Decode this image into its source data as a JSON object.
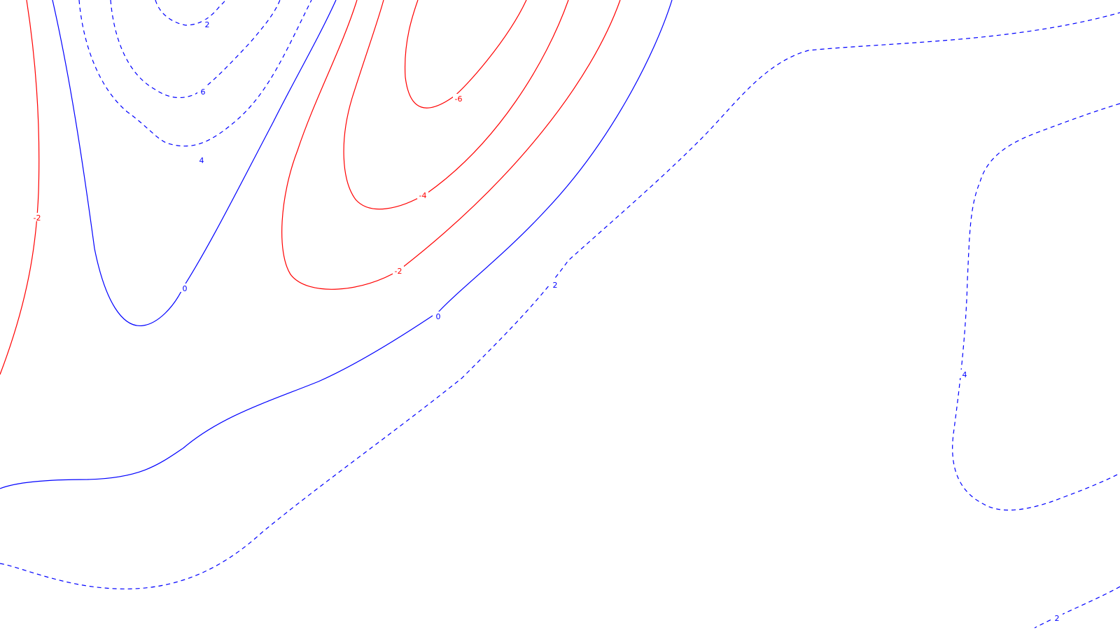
{
  "colors": {
    "negative": "#ff0000",
    "positive": "#0000ff",
    "background": "#ffffff"
  },
  "chart_data": {
    "type": "contour",
    "title": "",
    "xlabel": "",
    "ylabel": "",
    "grid": false,
    "legend": "none",
    "line_styles": {
      "positive": "dashed",
      "negative": "solid"
    },
    "contour_levels": [
      -6,
      -4,
      -2,
      0,
      2,
      4,
      6
    ],
    "contours": [
      {
        "level": -6,
        "style": "solid",
        "label": "-6"
      },
      {
        "level": -4,
        "style": "solid",
        "label": "-4"
      },
      {
        "level": -2,
        "style": "solid",
        "label": "-2"
      },
      {
        "level": -2,
        "style": "solid",
        "label": "-2"
      },
      {
        "level": 0,
        "style": "solid",
        "label": "0"
      },
      {
        "level": 0,
        "style": "solid",
        "label": "0"
      },
      {
        "level": 2,
        "style": "dashed",
        "label": "2"
      },
      {
        "level": 4,
        "style": "dashed",
        "label": "4"
      },
      {
        "level": 6,
        "style": "dashed",
        "label": "6"
      },
      {
        "level": 2,
        "style": "dashed",
        "label": "2"
      },
      {
        "level": 4,
        "style": "dashed",
        "label": "4"
      },
      {
        "level": 2,
        "style": "dashed",
        "label": "2"
      }
    ]
  }
}
